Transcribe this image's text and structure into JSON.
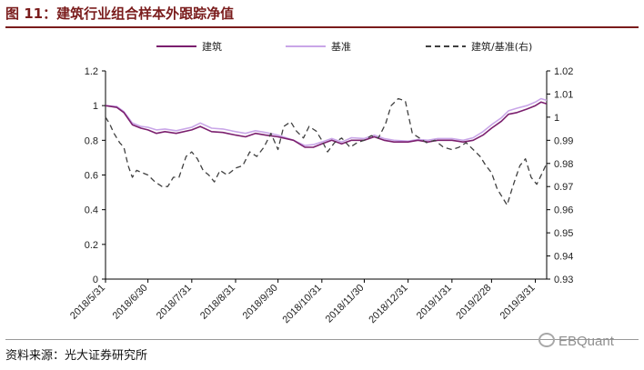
{
  "figure": {
    "title": "图 11：建筑行业组合样本外跟踪净值",
    "source": "资料来源：光大证券研究所",
    "watermark": "EBQuant"
  },
  "colors": {
    "title": "#7a1c1c",
    "portfolio": "#7b1f6e",
    "benchmark": "#c9a6e8",
    "ratio": "#404040"
  },
  "chart_data": {
    "type": "line",
    "title": "",
    "legend_placement": "top",
    "grid": false,
    "x_tick_labels": [
      "2018/5/31",
      "2018/6/30",
      "2018/7/31",
      "2018/8/31",
      "2018/9/30",
      "2018/10/31",
      "2018/11/30",
      "2018/12/31",
      "2019/1/31",
      "2019/2/28",
      "2019/3/31"
    ],
    "x_range": [
      "2018-05-31",
      "2019-04-08"
    ],
    "y_left": {
      "ticks": [
        "0",
        "0.2",
        "0.4",
        "0.6",
        "0.8",
        "1",
        "1.2"
      ],
      "range": [
        0,
        1.2
      ]
    },
    "y_right": {
      "ticks": [
        "0.93",
        "0.94",
        "0.95",
        "0.96",
        "0.97",
        "0.98",
        "0.99",
        "1",
        "1.01",
        "1.02"
      ],
      "range": [
        0.93,
        1.02
      ]
    },
    "series": [
      {
        "name": "建筑",
        "axis": "left",
        "style": "solid",
        "points": [
          [
            "2018-05-31",
            1.0
          ],
          [
            "2018-06-08",
            0.99
          ],
          [
            "2018-06-13",
            0.96
          ],
          [
            "2018-06-19",
            0.89
          ],
          [
            "2018-06-25",
            0.87
          ],
          [
            "2018-06-30",
            0.86
          ],
          [
            "2018-07-06",
            0.84
          ],
          [
            "2018-07-12",
            0.85
          ],
          [
            "2018-07-20",
            0.84
          ],
          [
            "2018-07-31",
            0.86
          ],
          [
            "2018-08-06",
            0.88
          ],
          [
            "2018-08-14",
            0.85
          ],
          [
            "2018-08-22",
            0.845
          ],
          [
            "2018-08-31",
            0.83
          ],
          [
            "2018-09-07",
            0.82
          ],
          [
            "2018-09-14",
            0.84
          ],
          [
            "2018-09-21",
            0.83
          ],
          [
            "2018-09-30",
            0.82
          ],
          [
            "2018-10-11",
            0.8
          ],
          [
            "2018-10-19",
            0.76
          ],
          [
            "2018-10-25",
            0.76
          ],
          [
            "2018-10-31",
            0.78
          ],
          [
            "2018-11-07",
            0.8
          ],
          [
            "2018-11-14",
            0.78
          ],
          [
            "2018-11-21",
            0.8
          ],
          [
            "2018-11-30",
            0.8
          ],
          [
            "2018-12-07",
            0.82
          ],
          [
            "2018-12-14",
            0.8
          ],
          [
            "2018-12-21",
            0.79
          ],
          [
            "2018-12-31",
            0.79
          ],
          [
            "2019-01-07",
            0.8
          ],
          [
            "2019-01-14",
            0.79
          ],
          [
            "2019-01-21",
            0.8
          ],
          [
            "2019-01-31",
            0.8
          ],
          [
            "2019-02-08",
            0.79
          ],
          [
            "2019-02-15",
            0.8
          ],
          [
            "2019-02-22",
            0.83
          ],
          [
            "2019-02-28",
            0.87
          ],
          [
            "2019-03-07",
            0.91
          ],
          [
            "2019-03-12",
            0.95
          ],
          [
            "2019-03-18",
            0.96
          ],
          [
            "2019-03-25",
            0.98
          ],
          [
            "2019-03-31",
            1.0
          ],
          [
            "2019-04-04",
            1.02
          ],
          [
            "2019-04-08",
            1.01
          ]
        ]
      },
      {
        "name": "基准",
        "axis": "left",
        "style": "solid",
        "points": [
          [
            "2018-05-31",
            1.0
          ],
          [
            "2018-06-08",
            0.995
          ],
          [
            "2018-06-13",
            0.965
          ],
          [
            "2018-06-19",
            0.9
          ],
          [
            "2018-06-25",
            0.88
          ],
          [
            "2018-06-30",
            0.875
          ],
          [
            "2018-07-06",
            0.86
          ],
          [
            "2018-07-12",
            0.865
          ],
          [
            "2018-07-20",
            0.855
          ],
          [
            "2018-07-31",
            0.875
          ],
          [
            "2018-08-06",
            0.9
          ],
          [
            "2018-08-14",
            0.87
          ],
          [
            "2018-08-22",
            0.865
          ],
          [
            "2018-08-31",
            0.85
          ],
          [
            "2018-09-07",
            0.84
          ],
          [
            "2018-09-14",
            0.855
          ],
          [
            "2018-09-21",
            0.845
          ],
          [
            "2018-09-30",
            0.83
          ],
          [
            "2018-10-11",
            0.8
          ],
          [
            "2018-10-19",
            0.77
          ],
          [
            "2018-10-25",
            0.775
          ],
          [
            "2018-10-31",
            0.79
          ],
          [
            "2018-11-07",
            0.81
          ],
          [
            "2018-11-14",
            0.79
          ],
          [
            "2018-11-21",
            0.815
          ],
          [
            "2018-11-30",
            0.81
          ],
          [
            "2018-12-07",
            0.83
          ],
          [
            "2018-12-14",
            0.81
          ],
          [
            "2018-12-21",
            0.8
          ],
          [
            "2018-12-31",
            0.795
          ],
          [
            "2019-01-07",
            0.805
          ],
          [
            "2019-01-14",
            0.8
          ],
          [
            "2019-01-21",
            0.81
          ],
          [
            "2019-01-31",
            0.81
          ],
          [
            "2019-02-08",
            0.8
          ],
          [
            "2019-02-15",
            0.815
          ],
          [
            "2019-02-22",
            0.85
          ],
          [
            "2019-02-28",
            0.89
          ],
          [
            "2019-03-07",
            0.93
          ],
          [
            "2019-03-12",
            0.97
          ],
          [
            "2019-03-18",
            0.985
          ],
          [
            "2019-03-25",
            1.0
          ],
          [
            "2019-03-31",
            1.02
          ],
          [
            "2019-04-04",
            1.04
          ],
          [
            "2019-04-08",
            1.03
          ]
        ]
      },
      {
        "name": "建筑/基准(右)",
        "axis": "right",
        "style": "dashed",
        "points": [
          [
            "2018-05-31",
            1.0
          ],
          [
            "2018-06-03",
            0.997
          ],
          [
            "2018-06-06",
            0.993
          ],
          [
            "2018-06-10",
            0.989
          ],
          [
            "2018-06-13",
            0.987
          ],
          [
            "2018-06-16",
            0.979
          ],
          [
            "2018-06-19",
            0.974
          ],
          [
            "2018-06-22",
            0.977
          ],
          [
            "2018-06-26",
            0.976
          ],
          [
            "2018-06-30",
            0.975
          ],
          [
            "2018-07-05",
            0.972
          ],
          [
            "2018-07-10",
            0.97
          ],
          [
            "2018-07-14",
            0.97
          ],
          [
            "2018-07-18",
            0.974
          ],
          [
            "2018-07-22",
            0.974
          ],
          [
            "2018-07-27",
            0.983
          ],
          [
            "2018-07-31",
            0.985
          ],
          [
            "2018-08-04",
            0.982
          ],
          [
            "2018-08-08",
            0.977
          ],
          [
            "2018-08-12",
            0.975
          ],
          [
            "2018-08-16",
            0.972
          ],
          [
            "2018-08-20",
            0.977
          ],
          [
            "2018-08-25",
            0.975
          ],
          [
            "2018-08-31",
            0.978
          ],
          [
            "2018-09-05",
            0.979
          ],
          [
            "2018-09-10",
            0.985
          ],
          [
            "2018-09-15",
            0.983
          ],
          [
            "2018-09-20",
            0.987
          ],
          [
            "2018-09-25",
            0.993
          ],
          [
            "2018-09-30",
            0.986
          ],
          [
            "2018-10-04",
            0.996
          ],
          [
            "2018-10-09",
            0.998
          ],
          [
            "2018-10-13",
            0.994
          ],
          [
            "2018-10-18",
            0.991
          ],
          [
            "2018-10-22",
            0.996
          ],
          [
            "2018-10-27",
            0.994
          ],
          [
            "2018-10-31",
            0.99
          ],
          [
            "2018-11-04",
            0.985
          ],
          [
            "2018-11-09",
            0.989
          ],
          [
            "2018-11-14",
            0.991
          ],
          [
            "2018-11-20",
            0.987
          ],
          [
            "2018-11-25",
            0.989
          ],
          [
            "2018-11-30",
            0.99
          ],
          [
            "2018-12-05",
            0.992
          ],
          [
            "2018-12-10",
            0.991
          ],
          [
            "2018-12-15",
            0.997
          ],
          [
            "2018-12-19",
            1.005
          ],
          [
            "2018-12-24",
            1.008
          ],
          [
            "2018-12-29",
            1.007
          ],
          [
            "2019-01-03",
            0.993
          ],
          [
            "2019-01-08",
            0.991
          ],
          [
            "2019-01-13",
            0.989
          ],
          [
            "2019-01-19",
            0.99
          ],
          [
            "2019-01-25",
            0.987
          ],
          [
            "2019-01-31",
            0.986
          ],
          [
            "2019-02-05",
            0.987
          ],
          [
            "2019-02-10",
            0.989
          ],
          [
            "2019-02-15",
            0.986
          ],
          [
            "2019-02-20",
            0.983
          ],
          [
            "2019-02-24",
            0.979
          ],
          [
            "2019-02-28",
            0.976
          ],
          [
            "2019-03-04",
            0.969
          ],
          [
            "2019-03-08",
            0.965
          ],
          [
            "2019-03-11",
            0.962
          ],
          [
            "2019-03-15",
            0.97
          ],
          [
            "2019-03-20",
            0.979
          ],
          [
            "2019-03-24",
            0.982
          ],
          [
            "2019-03-28",
            0.974
          ],
          [
            "2019-04-01",
            0.971
          ],
          [
            "2019-04-05",
            0.976
          ],
          [
            "2019-04-08",
            0.98
          ]
        ]
      }
    ]
  }
}
